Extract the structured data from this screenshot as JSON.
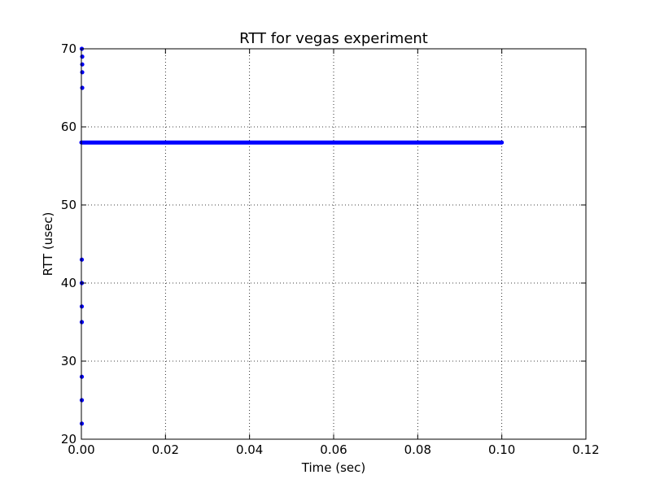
{
  "chart_data": {
    "type": "scatter",
    "title": "RTT for vegas experiment",
    "xlabel": "Time (sec)",
    "ylabel": "RTT (usec)",
    "xlim": [
      0.0,
      0.12
    ],
    "ylim": [
      20,
      70
    ],
    "xticks": [
      "0.00",
      "0.02",
      "0.04",
      "0.06",
      "0.08",
      "0.10",
      "0.12"
    ],
    "yticks": [
      "20",
      "30",
      "40",
      "50",
      "60",
      "70"
    ],
    "grid": true,
    "marker_color": "#0000ff",
    "series": [
      {
        "steady_line": {
          "y": 58,
          "x_start": 0.0,
          "x_end": 0.1
        },
        "points": [
          {
            "x": 0.0001,
            "y": 22
          },
          {
            "x": 0.0001,
            "y": 25
          },
          {
            "x": 0.0001,
            "y": 28
          },
          {
            "x": 0.0001,
            "y": 35
          },
          {
            "x": 0.0001,
            "y": 37
          },
          {
            "x": 0.0001,
            "y": 40
          },
          {
            "x": 0.0001,
            "y": 43
          },
          {
            "x": 0.0002,
            "y": 65
          },
          {
            "x": 0.0002,
            "y": 67
          },
          {
            "x": 0.0002,
            "y": 68
          },
          {
            "x": 0.0002,
            "y": 69
          },
          {
            "x": 0.0001,
            "y": 70
          }
        ]
      }
    ]
  }
}
